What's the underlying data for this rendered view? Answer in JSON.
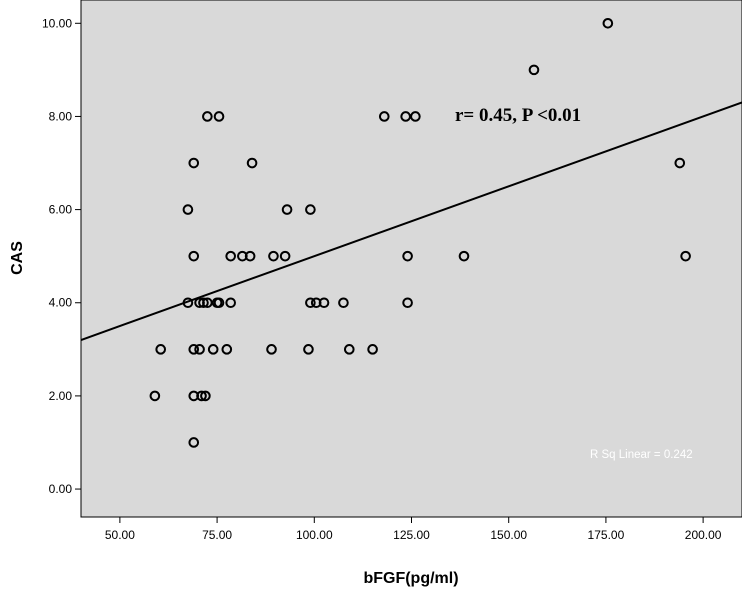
{
  "chart_data": {
    "type": "scatter",
    "xlabel": "bFGF(pg/ml)",
    "ylabel": "CAS",
    "xlim": [
      40,
      210
    ],
    "ylim": [
      -0.6,
      10.5
    ],
    "x_ticks": [
      50,
      75,
      100,
      125,
      150,
      175,
      200
    ],
    "x_tick_labels": [
      "50.00",
      "75.00",
      "100.00",
      "125.00",
      "150.00",
      "175.00",
      "200.00"
    ],
    "y_ticks": [
      0,
      2,
      4,
      6,
      8,
      10
    ],
    "y_tick_labels": [
      "0.00",
      "2.00",
      "4.00",
      "6.00",
      "8.00",
      "10.00"
    ],
    "grid": false,
    "background_color": "#d9d9d9",
    "fit_line": {
      "type": "linear",
      "slope": 0.03,
      "intercept": 2.0
    },
    "annotation": "r= 0.45, P <0.01",
    "r_squared_label": "R Sq Linear = 0.242",
    "points": [
      {
        "x": 175.5,
        "y": 10
      },
      {
        "x": 156.5,
        "y": 9
      },
      {
        "x": 72.5,
        "y": 8
      },
      {
        "x": 75.5,
        "y": 8
      },
      {
        "x": 118,
        "y": 8
      },
      {
        "x": 123.5,
        "y": 8
      },
      {
        "x": 126,
        "y": 8
      },
      {
        "x": 69,
        "y": 7
      },
      {
        "x": 84,
        "y": 7
      },
      {
        "x": 194,
        "y": 7
      },
      {
        "x": 67.5,
        "y": 6
      },
      {
        "x": 93,
        "y": 6
      },
      {
        "x": 99,
        "y": 6
      },
      {
        "x": 69,
        "y": 5
      },
      {
        "x": 78.5,
        "y": 5
      },
      {
        "x": 81.5,
        "y": 5
      },
      {
        "x": 83.5,
        "y": 5
      },
      {
        "x": 89.5,
        "y": 5
      },
      {
        "x": 92.5,
        "y": 5
      },
      {
        "x": 124,
        "y": 5
      },
      {
        "x": 138.5,
        "y": 5
      },
      {
        "x": 195.5,
        "y": 5
      },
      {
        "x": 67.5,
        "y": 4
      },
      {
        "x": 70.5,
        "y": 4
      },
      {
        "x": 71.5,
        "y": 4
      },
      {
        "x": 72.5,
        "y": 4
      },
      {
        "x": 75,
        "y": 4
      },
      {
        "x": 75.5,
        "y": 4
      },
      {
        "x": 78.5,
        "y": 4
      },
      {
        "x": 99,
        "y": 4
      },
      {
        "x": 100.5,
        "y": 4
      },
      {
        "x": 102.5,
        "y": 4
      },
      {
        "x": 107.5,
        "y": 4
      },
      {
        "x": 124,
        "y": 4
      },
      {
        "x": 60.5,
        "y": 3
      },
      {
        "x": 69,
        "y": 3
      },
      {
        "x": 70.5,
        "y": 3
      },
      {
        "x": 74,
        "y": 3
      },
      {
        "x": 77.5,
        "y": 3
      },
      {
        "x": 89,
        "y": 3
      },
      {
        "x": 98.5,
        "y": 3
      },
      {
        "x": 109,
        "y": 3
      },
      {
        "x": 115,
        "y": 3
      },
      {
        "x": 59,
        "y": 2
      },
      {
        "x": 69,
        "y": 2
      },
      {
        "x": 71,
        "y": 2
      },
      {
        "x": 72,
        "y": 2
      },
      {
        "x": 69,
        "y": 1
      }
    ]
  }
}
